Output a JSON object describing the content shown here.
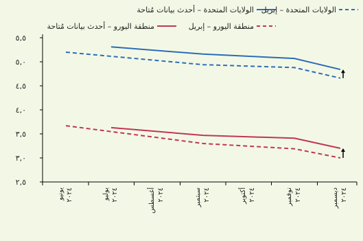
{
  "chart_data": {
    "type": "line",
    "categories": [
      "يونيو ٢٠٢٤",
      "يوليو ٢٠٢٤",
      "أغسطس ٢٠٢٤",
      "سبتمبر ٢٠٢٤",
      "أكتوبر ٢٠٢٤",
      "نوفمبر ٢٠٢٤",
      "ديسمبر ٢٠٢٤"
    ],
    "x_labels": [
      {
        "month": "يونيو",
        "year": "٢٠٢٤"
      },
      {
        "month": "يوليو",
        "year": "٢٠٢٤"
      },
      {
        "month": "أغسطس",
        "year": "٢٠٢٤"
      },
      {
        "month": "سبتمبر",
        "year": "٢٠٢٤"
      },
      {
        "month": "أكتوبر",
        "year": "٢٠٢٤"
      },
      {
        "month": "نوفمبر",
        "year": "٢٠٢٤"
      },
      {
        "month": "ديسمبر",
        "year": "٢٠٢٤"
      }
    ],
    "y_ticks": [
      {
        "value": 2.5,
        "label": "٢,٥"
      },
      {
        "value": 3.0,
        "label": "٣,٠"
      },
      {
        "value": 3.5,
        "label": "٣,٥"
      },
      {
        "value": 4.0,
        "label": "٤,٠"
      },
      {
        "value": 4.5,
        "label": "٤,٥"
      },
      {
        "value": 5.0,
        "label": "٥,٠"
      },
      {
        "value": 5.5,
        "label": "٥,٥"
      }
    ],
    "ylim": [
      2.5,
      5.5
    ],
    "series": [
      {
        "name": "الولايات المتحدة – أحدث بيانات مُتاحة",
        "color": "#2b6cb8",
        "dashed": false,
        "values": [
          null,
          5.31,
          null,
          5.16,
          null,
          5.07,
          4.84
        ]
      },
      {
        "name": "الولايات المتحدة – إبريل",
        "color": "#2b6cb8",
        "dashed": true,
        "values": [
          5.2,
          null,
          null,
          4.94,
          null,
          4.88,
          4.66
        ]
      },
      {
        "name": "منطقة اليورو – أحدث بيانات مُتاحة",
        "color": "#c03555",
        "dashed": false,
        "values": [
          null,
          3.63,
          null,
          3.47,
          null,
          3.41,
          3.2
        ]
      },
      {
        "name": "منطقة اليورو – إبريل",
        "color": "#c03555",
        "dashed": true,
        "values": [
          3.67,
          null,
          null,
          3.3,
          null,
          3.19,
          3.0
        ]
      }
    ],
    "arrows": [
      {
        "category_index": 6,
        "from": 4.66,
        "to": 4.84,
        "color": "#000000"
      },
      {
        "category_index": 6,
        "from": 3.0,
        "to": 3.2,
        "color": "#000000"
      }
    ],
    "legend": [
      {
        "label": "الولايات المتحدة – أحدث بيانات مُتاحة",
        "color": "#2b6cb8",
        "dashed": false
      },
      {
        "label": "الولايات المتحدة – إبريل",
        "color": "#2b6cb8",
        "dashed": true
      },
      {
        "label": "منطقة اليورو – أحدث بيانات مُتاحة",
        "color": "#c03555",
        "dashed": false
      },
      {
        "label": "منطقة اليورو – إبريل",
        "color": "#c03555",
        "dashed": true
      }
    ],
    "legend_position": "top",
    "grid": false
  }
}
